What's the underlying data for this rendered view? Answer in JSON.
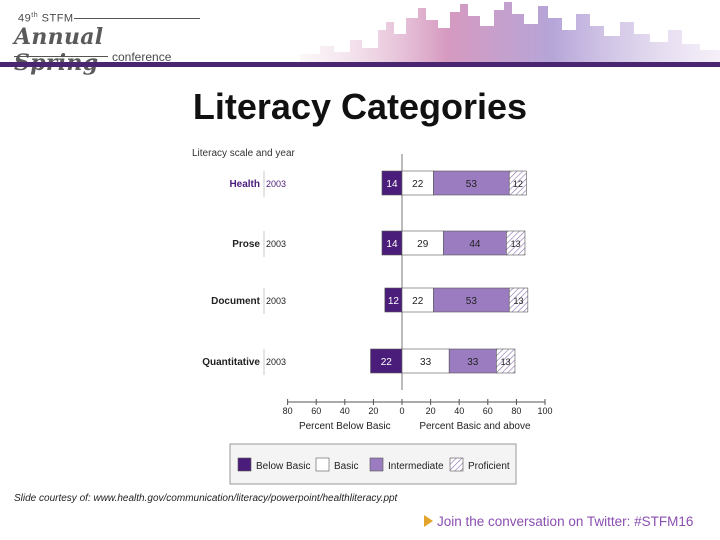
{
  "header": {
    "logo_ordinal": "49",
    "logo_ordinal_suffix": "th",
    "logo_org": "STFM",
    "logo_name": "Annual Spring",
    "logo_sub": "conference"
  },
  "slide": {
    "title": "Literacy Categories",
    "footnote": "Slide courtesy of: www.health.gov/communication/literacy/powerpoint/healthliteracy.ppt",
    "twitter": "Join the conversation on Twitter: #STFM16"
  },
  "colors": {
    "below_basic": "#4b1d7a",
    "basic": "#ffffff",
    "intermediate": "#9b7cc0",
    "proficient_hatch": "#8a6fb0",
    "header_band": "#4a2670",
    "twitter_text": "#8a4fb0"
  },
  "chart_data": {
    "type": "bar",
    "orientation": "horizontal-diverging",
    "header_label": "Literacy scale and year",
    "categories": [
      "Health",
      "Prose",
      "Document",
      "Quantitative"
    ],
    "years": [
      "2003",
      "2003",
      "2003",
      "2003"
    ],
    "series": [
      {
        "name": "Below Basic",
        "values": [
          14,
          14,
          12,
          22
        ],
        "direction": "negative"
      },
      {
        "name": "Basic",
        "values": [
          22,
          29,
          22,
          33
        ],
        "direction": "positive"
      },
      {
        "name": "Intermediate",
        "values": [
          53,
          44,
          53,
          33
        ],
        "direction": "positive"
      },
      {
        "name": "Proficient",
        "values": [
          12,
          13,
          13,
          13
        ],
        "direction": "positive"
      }
    ],
    "xlim": [
      -80,
      100
    ],
    "x_ticks": [
      "80",
      "60",
      "40",
      "20",
      "0",
      "20",
      "40",
      "60",
      "80",
      "100"
    ],
    "xlabel_left": "Percent Below Basic",
    "xlabel_right": "Percent Basic and above",
    "legend": [
      "Below Basic",
      "Basic",
      "Intermediate",
      "Proficient"
    ],
    "legend_position": "bottom"
  }
}
